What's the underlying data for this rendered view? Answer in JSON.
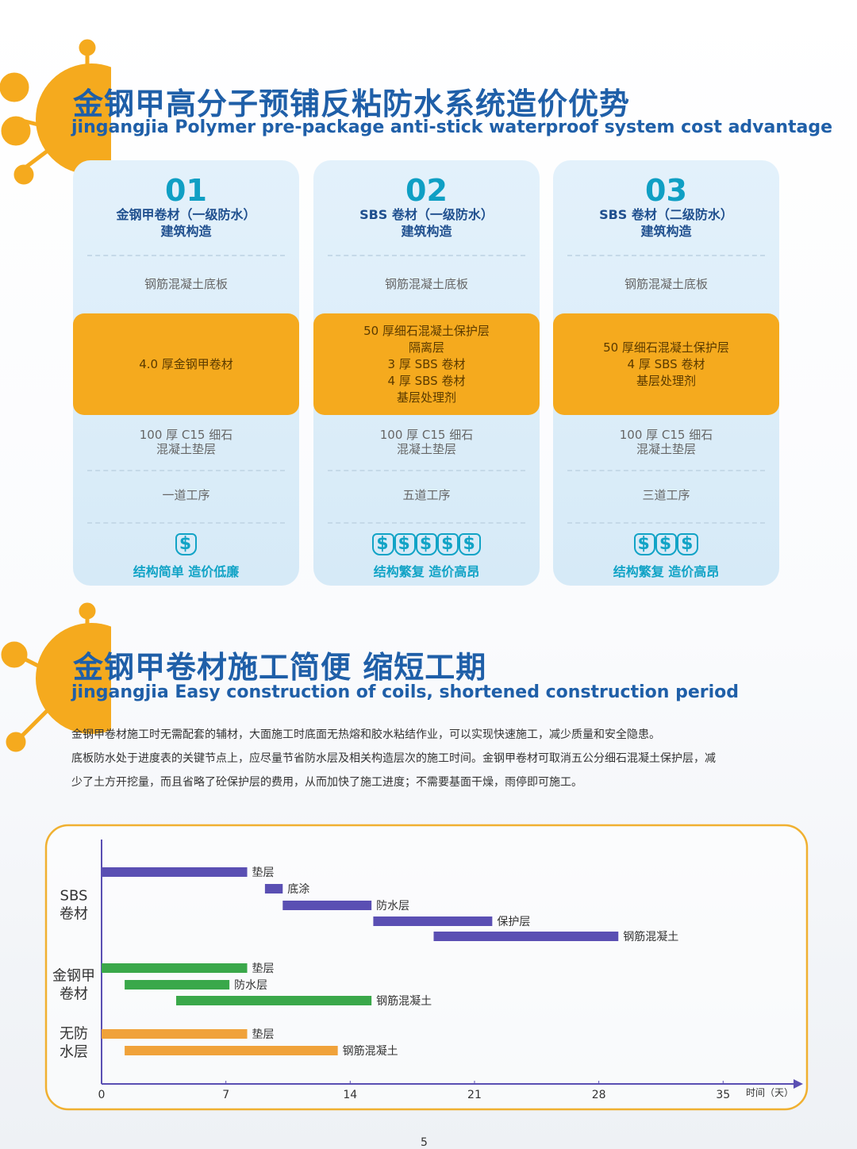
{
  "section1": {
    "title": "金钢甲高分子预铺反粘防水系统造价优势",
    "subtitle": "jingangjia Polymer pre-package anti-stick waterproof system cost advantage",
    "cards": [
      {
        "number": "01",
        "heading": [
          "金钢甲卷材（一级防水）",
          "建筑构造"
        ],
        "base": "钢筋混凝土底板",
        "highlight": [
          "4.0 厚金钢甲卷材"
        ],
        "cushion": [
          "100 厚 C15 细石",
          "混凝土垫层"
        ],
        "steps": "一道工序",
        "footer": "结构简单  造价低廉"
      },
      {
        "number": "02",
        "heading": [
          "SBS 卷材（一级防水）",
          "建筑构造"
        ],
        "base": "钢筋混凝土底板",
        "highlight": [
          "50 厚细石混凝土保护层",
          "隔离层",
          "3 厚 SBS 卷材",
          "4 厚 SBS 卷材",
          "基层处理剂"
        ],
        "cushion": [
          "100 厚 C15 细石",
          "混凝土垫层"
        ],
        "steps": "五道工序",
        "footer": "结构繁复  造价高昂"
      },
      {
        "number": "03",
        "heading": [
          "SBS 卷材（二级防水）",
          "建筑构造"
        ],
        "base": "钢筋混凝土底板",
        "highlight": [
          "50 厚细石混凝土保护层",
          "4 厚 SBS 卷材",
          "基层处理剂"
        ],
        "cushion": [
          "100 厚 C15 细石",
          "混凝土垫层"
        ],
        "steps": "三道工序",
        "footer": "结构繁复  造价高昂"
      }
    ]
  },
  "section2": {
    "title": "金钢甲卷材施工简便 缩短工期",
    "subtitle": "jingangjia Easy construction of coils, shortened construction period",
    "paragraph": [
      "金钢甲卷材施工时无需配套的辅材，大面施工时底面无热熔和胶水粘结作业，可以实现快速施工，减少质量和安全隐患。",
      "底板防水处于进度表的关键节点上，应尽量节省防水层及相关构造层次的施工时间。金钢甲卷材可取消五公分细石混凝土保护层，减",
      "少了土方开挖量，而且省略了砼保护层的费用，从而加快了施工进度；不需要基面干燥，雨停即可施工。"
    ]
  },
  "chart_data": {
    "type": "gantt",
    "x_label": "时间（天）",
    "xlim": [
      0,
      39.5
    ],
    "xticks": [
      0,
      7,
      14,
      21,
      28,
      35
    ],
    "groups": [
      {
        "name": [
          "SBS",
          "卷材"
        ],
        "color": "#5a4fb3",
        "tasks": [
          {
            "name": "垫层",
            "start": 0,
            "end": 8.2
          },
          {
            "name": "底涂",
            "start": 9.2,
            "end": 10.2
          },
          {
            "name": "防水层",
            "start": 10.2,
            "end": 15.2
          },
          {
            "name": "保护层",
            "start": 15.3,
            "end": 22
          },
          {
            "name": "钢筋混凝土",
            "start": 18.7,
            "end": 29.1
          }
        ]
      },
      {
        "name": [
          "金钢甲",
          "卷材"
        ],
        "color": "#3aa84a",
        "tasks": [
          {
            "name": "垫层",
            "start": 0,
            "end": 8.2
          },
          {
            "name": "防水层",
            "start": 1.3,
            "end": 7.2
          },
          {
            "name": "钢筋混凝土",
            "start": 4.2,
            "end": 15.2
          }
        ]
      },
      {
        "name": [
          "无防",
          "水层"
        ],
        "color": "#f0a23a",
        "tasks": [
          {
            "name": "垫层",
            "start": 0,
            "end": 8.2
          },
          {
            "name": "钢筋混凝土",
            "start": 1.3,
            "end": 13.3
          }
        ]
      }
    ]
  },
  "page_number": "5"
}
